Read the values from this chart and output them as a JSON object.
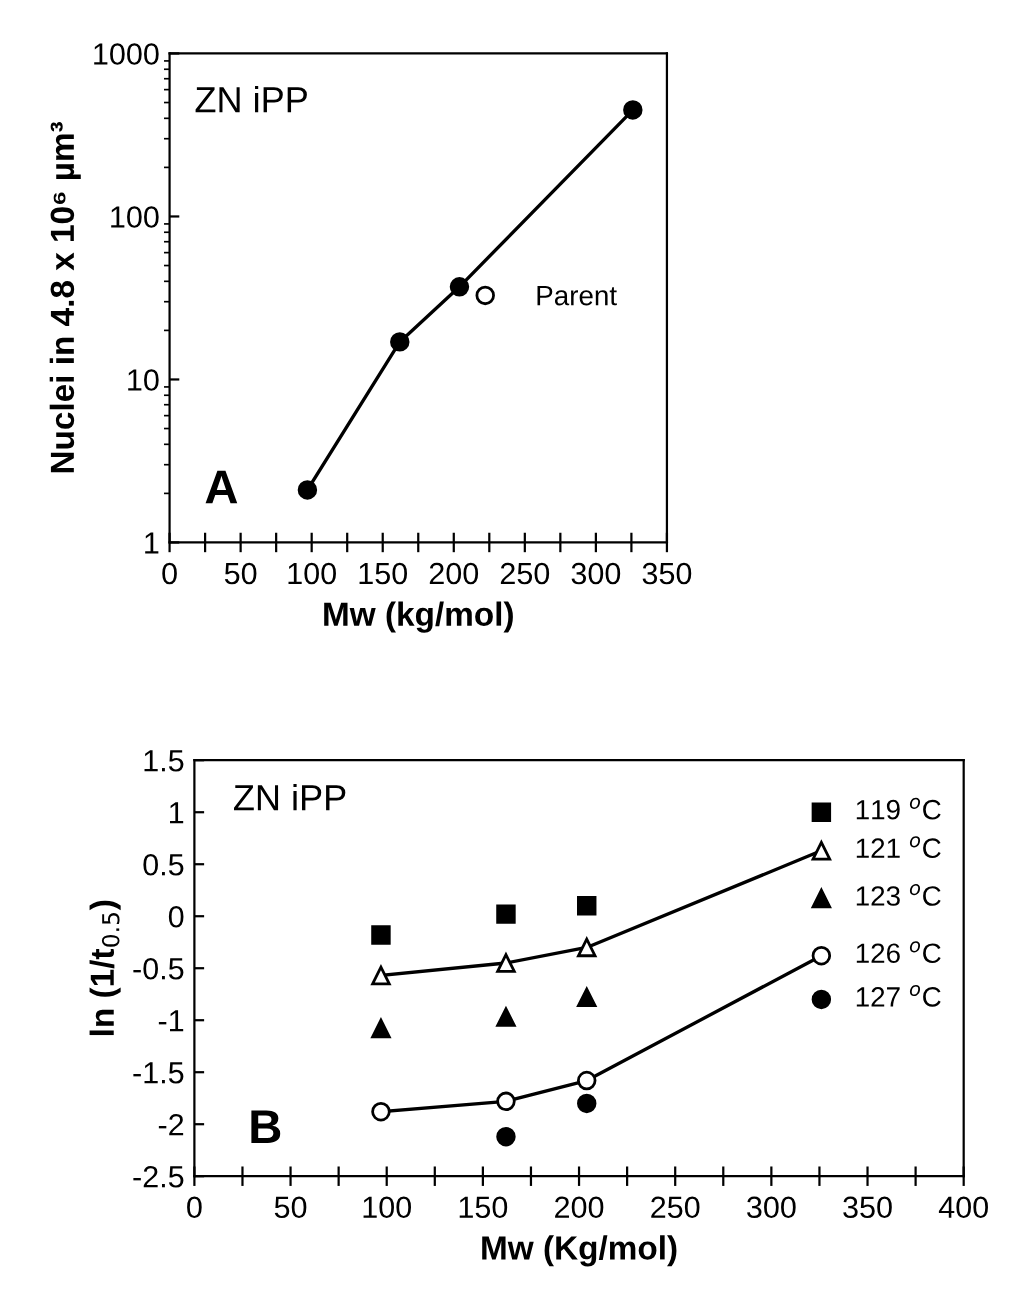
{
  "chart_data": [
    {
      "type": "line",
      "xlabel": "Mw (kg/mol)",
      "ylabel": "Nuclei in 4.8 x 10⁶ µm³",
      "log": "y",
      "xlim": [
        0,
        350
      ],
      "xticks": [
        0,
        {
          "value": 25,
          "label": null
        },
        50,
        {
          "value": 75,
          "label": null
        },
        100,
        {
          "value": 125,
          "label": null
        },
        150,
        {
          "value": 175,
          "label": null
        },
        200,
        {
          "value": 225,
          "label": null
        },
        250,
        {
          "value": 275,
          "label": null
        },
        300,
        {
          "value": 325,
          "label": null
        },
        350
      ],
      "ylim": [
        1,
        1000
      ],
      "yticks": [
        1,
        10,
        100,
        1000
      ],
      "legend": "right",
      "annotations": [
        "ZN iPP",
        "A"
      ],
      "series": [
        {
          "x": [
            97,
            162,
            204,
            326
          ],
          "values": [
            2.1,
            17,
            37,
            450
          ],
          "color": "#000000",
          "marker": "circle"
        },
        {
          "name": "Parent",
          "type": "scatter",
          "color": "#000000",
          "marker": "circle"
        }
      ]
    },
    {
      "type": "scatter",
      "xlabel": "Mw (Kg/mol)",
      "ylabel": "ln (1/t$_{0.5}$)",
      "xlim": [
        0,
        400
      ],
      "xticks": [
        0,
        {
          "value": 25,
          "label": null
        },
        50,
        {
          "value": 75,
          "label": null
        },
        100,
        {
          "value": 125,
          "label": null
        },
        150,
        {
          "value": 175,
          "label": null
        },
        200,
        {
          "value": 225,
          "label": null
        },
        250,
        {
          "value": 275,
          "label": null
        },
        300,
        {
          "value": 325,
          "label": null
        },
        350,
        {
          "value": 375,
          "label": null
        },
        400
      ],
      "ylim": [
        -2.5,
        1.5
      ],
      "yticks": [
        -2.5,
        -2,
        -1.5,
        -1,
        -0.5,
        0,
        0.5,
        1,
        1.5
      ],
      "annotations": [
        "ZN iPP",
        "B"
      ],
      "series": [
        {
          "name": "119 $^{o}$C",
          "x": [
            97,
            162,
            204,
            326
          ],
          "values": [
            -0.18,
            0.02,
            0.1,
            1.0
          ],
          "color": "#000000",
          "marker": "square"
        },
        {
          "name": "121 $^{o}$C",
          "type": "line",
          "x": [
            97,
            162,
            204,
            326
          ],
          "values": [
            -0.57,
            -0.45,
            -0.3,
            0.63
          ],
          "color": "#000000",
          "marker": "triangle"
        },
        {
          "name": "123 $^{o}$C",
          "x": [
            97,
            162,
            204,
            326
          ],
          "values": [
            -1.08,
            -0.97,
            -0.78,
            0.17
          ],
          "color": "#000000",
          "marker": "triangle"
        },
        {
          "name": "126 $^{o}$C",
          "type": "line",
          "x": [
            97,
            162,
            204,
            326
          ],
          "values": [
            -1.88,
            -1.78,
            -1.58,
            -0.38
          ],
          "color": "#000000",
          "marker": "circle"
        },
        {
          "name": "127 $^{o}$C",
          "x": [
            162,
            204,
            326
          ],
          "values": [
            -2.12,
            -1.8,
            -0.8
          ],
          "color": "#000000",
          "marker": "circle"
        }
      ]
    }
  ]
}
